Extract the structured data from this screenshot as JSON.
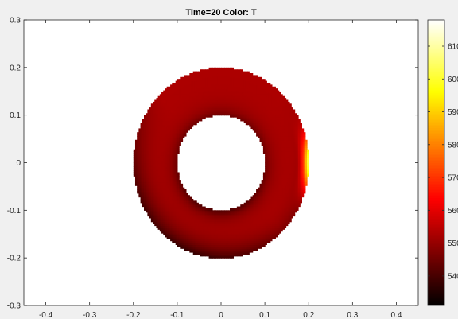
{
  "chart_data": {
    "type": "heatmap",
    "title": "Time=20   Color: T",
    "xlabel": "",
    "ylabel": "",
    "xlim": [
      -0.45,
      0.45
    ],
    "ylim": [
      -0.3,
      0.3
    ],
    "x_ticks": [
      -0.4,
      -0.3,
      -0.2,
      -0.1,
      0,
      0.1,
      0.2,
      0.3,
      0.4
    ],
    "x_tick_labels": [
      "-0.4",
      "-0.3",
      "-0.2",
      "-0.1",
      "0",
      "0.1",
      "0.2",
      "0.3",
      "0.4"
    ],
    "y_ticks": [
      -0.3,
      -0.2,
      -0.1,
      0,
      0.1,
      0.2,
      0.3
    ],
    "y_tick_labels": [
      "-0.3",
      "-0.2",
      "-0.1",
      "0",
      "0.1",
      "0.2",
      "0.3"
    ],
    "grid": false,
    "domain": {
      "shape": "annulus",
      "center": [
        0,
        0
      ],
      "outer_radius": 0.2,
      "inner_radius": 0.1,
      "field": "T",
      "base_value": 553,
      "hot_spot": {
        "location": [
          0.18,
          0
        ],
        "max_value": 612
      }
    },
    "colorbar": {
      "colormap": "hot",
      "range": [
        531,
        618
      ],
      "ticks": [
        540,
        550,
        560,
        570,
        580,
        590,
        600,
        610
      ],
      "tick_labels": [
        "540",
        "550",
        "560",
        "570",
        "580",
        "590",
        "600",
        "610"
      ],
      "placement": "right"
    }
  }
}
